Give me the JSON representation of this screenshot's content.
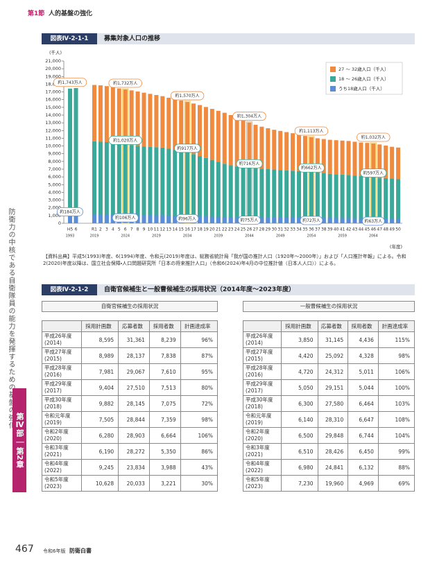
{
  "header": {
    "section": "第1節",
    "title": "人的基盤の強化"
  },
  "side": {
    "text": "防衛力の中核である自衛隊員の能力を発揮するための基盤の強化",
    "part": "第Ⅳ部",
    "chapter": "第2章"
  },
  "figure1": {
    "label": "図表Ⅳ-2-1-1",
    "title": "募集対象人口の推移"
  },
  "chart_data": {
    "type": "bar",
    "stacked": true,
    "y_unit": "(千人)",
    "x_unit": "(年度)",
    "ylim": [
      0,
      21000
    ],
    "yticks": [
      0,
      {
        "value": 1000,
        "label": "1,000"
      },
      {
        "value": 2000,
        "label": "2,000"
      },
      {
        "value": 3000,
        "label": "3,000"
      },
      {
        "value": 4000,
        "label": "4,000"
      },
      {
        "value": 5000,
        "label": "5,000"
      },
      {
        "value": 6000,
        "label": "6,000"
      },
      {
        "value": 7000,
        "label": "7,000"
      },
      {
        "value": 8000,
        "label": "8,000"
      },
      {
        "value": 9000,
        "label": "9,000"
      },
      {
        "value": 10000,
        "label": "10,000"
      },
      {
        "value": 11000,
        "label": "11,000"
      },
      {
        "value": 12000,
        "label": "12,000"
      },
      {
        "value": 13000,
        "label": "13,000"
      },
      {
        "value": 14000,
        "label": "14,000"
      },
      {
        "value": 15000,
        "label": "15,000"
      },
      {
        "value": 16000,
        "label": "16,000"
      },
      {
        "value": 17000,
        "label": "17,000"
      },
      {
        "value": 18000,
        "label": "18,000"
      },
      {
        "value": 19000,
        "label": "19,000"
      },
      {
        "value": 20000,
        "label": "20,000"
      },
      {
        "value": 21000,
        "label": "21,000"
      }
    ],
    "categories": [
      "H5",
      "6",
      "R1",
      "2",
      "3",
      "4",
      "5",
      "6",
      "7",
      "8",
      "9",
      "10",
      "11",
      "12",
      "13",
      "14",
      "15",
      "16",
      "17",
      "18",
      "19",
      "20",
      "21",
      "22",
      "23",
      "24",
      "25",
      "26",
      "27",
      "28",
      "29",
      "30",
      "31",
      "32",
      "33",
      "34",
      "35",
      "36",
      "37",
      "38",
      "39",
      "40",
      "41",
      "42",
      "43",
      "44",
      "45",
      "46",
      "47",
      "48",
      "49",
      "50"
    ],
    "year_labels": [
      "1993",
      null,
      "2019",
      null,
      null,
      null,
      null,
      "2024",
      null,
      null,
      null,
      null,
      "2029",
      null,
      null,
      null,
      null,
      "2034",
      null,
      null,
      null,
      null,
      "2039",
      null,
      null,
      null,
      null,
      "2044",
      null,
      null,
      null,
      null,
      "2049",
      null,
      null,
      null,
      null,
      "2054",
      null,
      null,
      null,
      null,
      "2059",
      null,
      null,
      null,
      null,
      "2064",
      null,
      null,
      null,
      null
    ],
    "legend": "top-right",
    "series": [
      {
        "name": "27 ～ 32歳人口（千人）",
        "color": "#f08a3e",
        "stack": true,
        "values": [
          null,
          null,
          7300,
          7300,
          7250,
          7200,
          7150,
          7120,
          7100,
          7050,
          6950,
          6850,
          6750,
          6650,
          6600,
          6550,
          6530,
          6530,
          6550,
          6600,
          6600,
          6600,
          6600,
          6600,
          6500,
          6350,
          6150,
          5880,
          5650,
          5450,
          5300,
          5150,
          5050,
          4950,
          4850,
          4750,
          4600,
          4510,
          4450,
          4400,
          4400,
          4400,
          4400,
          4400,
          4400,
          4350,
          4350,
          4350,
          4300,
          4200,
          4100,
          4100
        ]
      },
      {
        "name": "18 ～ 26歳人口（千人）",
        "color": "#3aa99a",
        "stack": true,
        "values": [
          17430,
          17500,
          10600,
          10550,
          10500,
          10400,
          10300,
          10200,
          10100,
          10000,
          9950,
          9900,
          9850,
          9800,
          9650,
          9500,
          9350,
          9170,
          8950,
          8700,
          8450,
          8200,
          7950,
          7700,
          7500,
          7350,
          7250,
          7160,
          7100,
          7050,
          7000,
          6950,
          6900,
          6850,
          6800,
          6750,
          6700,
          6620,
          6550,
          6500,
          6400,
          6350,
          6300,
          6250,
          6150,
          6100,
          6050,
          5970,
          5900,
          5850,
          5800,
          5700
        ],
        "value_labels": [
          null,
          null,
          null,
          null,
          null,
          null,
          null,
          "約1,020万人",
          null,
          null,
          null,
          null,
          null,
          null,
          null,
          null,
          null,
          "約917万人",
          null,
          null,
          null,
          null,
          null,
          null,
          null,
          null,
          null,
          "約716万人",
          null,
          null,
          null,
          null,
          null,
          null,
          null,
          null,
          null,
          "約662万人",
          null,
          null,
          null,
          null,
          null,
          null,
          null,
          null,
          null,
          "約597万人",
          null,
          null,
          null,
          null
        ]
      },
      {
        "name": "うち18歳人口（千人）",
        "color": "#5b8ed8",
        "stack": false,
        "values": [
          1840,
          1800,
          1180,
          1150,
          1130,
          1110,
          1090,
          1060,
          1060,
          1050,
          1050,
          1050,
          1040,
          1030,
          1010,
          990,
          975,
          960,
          930,
          900,
          870,
          840,
          810,
          790,
          770,
          760,
          755,
          750,
          745,
          740,
          740,
          735,
          735,
          730,
          730,
          725,
          722,
          720,
          715,
          705,
          695,
          680,
          670,
          660,
          650,
          645,
          640,
          630,
          625,
          615,
          610,
          600
        ],
        "value_labels": [
          "約184万人",
          null,
          null,
          null,
          null,
          null,
          null,
          "約106万人",
          null,
          null,
          null,
          null,
          null,
          null,
          null,
          null,
          null,
          "約96万人",
          null,
          null,
          null,
          null,
          null,
          null,
          null,
          null,
          null,
          "約75万人",
          null,
          null,
          null,
          null,
          null,
          null,
          null,
          null,
          null,
          "約72万人",
          null,
          null,
          null,
          null,
          null,
          null,
          null,
          null,
          null,
          "約63万人",
          null,
          null,
          null,
          null
        ]
      }
    ],
    "total_labels": {
      "values": [
        17430,
        null,
        null,
        null,
        null,
        null,
        null,
        17320,
        null,
        null,
        null,
        null,
        null,
        null,
        null,
        null,
        null,
        15700,
        null,
        null,
        null,
        null,
        null,
        null,
        null,
        null,
        null,
        13040,
        null,
        null,
        null,
        null,
        null,
        null,
        null,
        null,
        null,
        11130,
        null,
        null,
        null,
        null,
        null,
        null,
        null,
        null,
        null,
        10320,
        null,
        null,
        null,
        null
      ],
      "value_labels": [
        "約1,743万人",
        null,
        null,
        null,
        null,
        null,
        null,
        "約1,732万人",
        null,
        null,
        null,
        null,
        null,
        null,
        null,
        null,
        null,
        "約1,570万人",
        null,
        null,
        null,
        null,
        null,
        null,
        null,
        null,
        null,
        "約1,304万人",
        null,
        null,
        null,
        null,
        null,
        null,
        null,
        null,
        null,
        "約1,113万人",
        null,
        null,
        null,
        null,
        null,
        null,
        null,
        null,
        null,
        "約1,032万人",
        null,
        null,
        null,
        null
      ]
    }
  },
  "source_note": "【資料出典】平成5(1993)年度、6(1994)年度、令和元(2019)年度は、総務省統計局「我が国の推計人口（1920年～2000年）」および「人口推計年報」による。令和2(2020)年度以降は、国立社会保障・人口問題研究所「日本の将来推計人口」（令和6(2024)年4月の中位推計値（日本人人口））による。",
  "figure2": {
    "label": "図表Ⅳ-2-1-2",
    "title": "自衛官候補生と一般曹候補生の採用状況（2014年度～2023年度）"
  },
  "tables": [
    {
      "caption": "自衛官候補生の採用状況",
      "columns": [
        "採用計画数",
        "応募者数",
        "採用者数",
        "計画達成率"
      ],
      "rows": [
        [
          "平成26年度",
          "(2014)",
          "8,595",
          "31,361",
          "8,239",
          "96%"
        ],
        [
          "平成27年度",
          "(2015)",
          "8,989",
          "28,137",
          "7,838",
          "87%"
        ],
        [
          "平成28年度",
          "(2016)",
          "7,981",
          "29,067",
          "7,610",
          "95%"
        ],
        [
          "平成29年度",
          "(2017)",
          "9,404",
          "27,510",
          "7,513",
          "80%"
        ],
        [
          "平成30年度",
          "(2018)",
          "9,882",
          "28,145",
          "7,075",
          "72%"
        ],
        [
          "令和元年度",
          "(2019)",
          "7,505",
          "28,844",
          "7,359",
          "98%"
        ],
        [
          "令和2年度",
          "(2020)",
          "6,280",
          "28,903",
          "6,664",
          "106%"
        ],
        [
          "令和3年度",
          "(2021)",
          "6,190",
          "28,272",
          "5,350",
          "86%"
        ],
        [
          "令和4年度",
          "(2022)",
          "9,245",
          "23,834",
          "3,988",
          "43%"
        ],
        [
          "令和5年度",
          "(2023)",
          "10,628",
          "20,033",
          "3,221",
          "30%"
        ]
      ]
    },
    {
      "caption": "一般曹候補生の採用状況",
      "columns": [
        "採用計画数",
        "応募者数",
        "採用者数",
        "計画達成率"
      ],
      "rows": [
        [
          "平成26年度",
          "(2014)",
          "3,850",
          "31,145",
          "4,436",
          "115%"
        ],
        [
          "平成27年度",
          "(2015)",
          "4,420",
          "25,092",
          "4,328",
          "98%"
        ],
        [
          "平成28年度",
          "(2016)",
          "4,720",
          "24,312",
          "5,011",
          "106%"
        ],
        [
          "平成29年度",
          "(2017)",
          "5,050",
          "29,151",
          "5,044",
          "100%"
        ],
        [
          "平成30年度",
          "(2018)",
          "6,300",
          "27,580",
          "6,464",
          "103%"
        ],
        [
          "令和元年度",
          "(2019)",
          "6,140",
          "28,310",
          "6,647",
          "108%"
        ],
        [
          "令和2年度",
          "(2020)",
          "6,500",
          "29,848",
          "6,744",
          "104%"
        ],
        [
          "令和3年度",
          "(2021)",
          "6,510",
          "28,426",
          "6,450",
          "99%"
        ],
        [
          "令和4年度",
          "(2022)",
          "6,980",
          "24,841",
          "6,132",
          "88%"
        ],
        [
          "令和5年度",
          "(2023)",
          "7,230",
          "19,960",
          "4,969",
          "69%"
        ]
      ]
    }
  ],
  "footer": {
    "page": "467",
    "edition": "令和6年版",
    "book": "防衛白書"
  }
}
